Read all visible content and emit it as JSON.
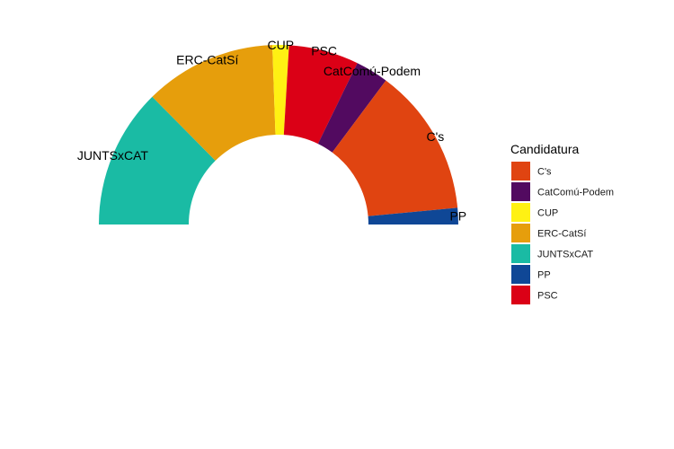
{
  "chart_data": {
    "type": "pie",
    "subtype": "half-donut parliament",
    "title": "",
    "legend": {
      "title": "Candidatura",
      "placement": "right",
      "entries": [
        "C's",
        "CatComú-Podem",
        "CUP",
        "ERC-CatSí",
        "JUNTSxCAT",
        "PP",
        "PSC"
      ]
    },
    "slices": [
      {
        "label": "JUNTSxCAT",
        "value": 34,
        "color": "#1ABBA4"
      },
      {
        "label": "ERC-CatSí",
        "value": 32,
        "color": "#E69E0C"
      },
      {
        "label": "CUP",
        "value": 4,
        "color": "#FFF113"
      },
      {
        "label": "PSC",
        "value": 17,
        "color": "#DB0016"
      },
      {
        "label": "CatComú-Podem",
        "value": 8,
        "color": "#520A60"
      },
      {
        "label": "C's",
        "value": 36,
        "color": "#E04411"
      },
      {
        "label": "PP",
        "value": 4,
        "color": "#0F4796"
      }
    ]
  }
}
